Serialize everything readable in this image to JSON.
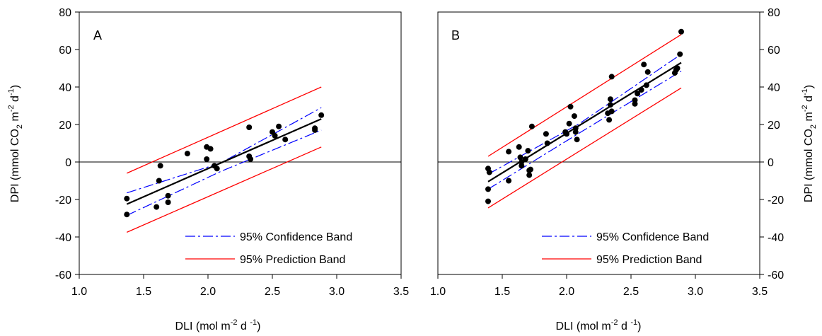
{
  "chart_data": [
    {
      "type": "scatter",
      "panel_label": "A",
      "xlabel": {
        "base": "DLI (mol m",
        "sup1": "-2",
        "mid": " d ",
        "sup2": "-1",
        "end": ")"
      },
      "ylabel": {
        "base": "DPI (mmol CO",
        "sub": "2",
        "mid": " m",
        "sup1": "-2",
        "mid2": " d",
        "sup2": "-1",
        "end": ")"
      },
      "ylabel_side": "left",
      "xlim": [
        1.0,
        3.5
      ],
      "ylim": [
        -60,
        80
      ],
      "xticks": [
        "1.0",
        "1.5",
        "2.0",
        "2.5",
        "3.0",
        "3.5"
      ],
      "yticks": [
        "-60",
        "-40",
        "-20",
        "0",
        "20",
        "40",
        "60",
        "80"
      ],
      "zero_line": 0,
      "legend_position": "bottom-right",
      "legend": [
        {
          "name": "95% Confidence Band",
          "style": "dash-dot",
          "color": "#0000ff"
        },
        {
          "name": "95% Prediction Band",
          "style": "solid",
          "color": "#ff0000"
        }
      ],
      "points": [
        [
          1.37,
          -28
        ],
        [
          1.37,
          -19.5
        ],
        [
          1.6,
          -24
        ],
        [
          1.62,
          -10
        ],
        [
          1.63,
          -2
        ],
        [
          1.69,
          -21.5
        ],
        [
          1.69,
          -18
        ],
        [
          1.84,
          4.5
        ],
        [
          1.99,
          1.5
        ],
        [
          1.99,
          8
        ],
        [
          2.02,
          7
        ],
        [
          2.05,
          -2
        ],
        [
          2.07,
          -3.5
        ],
        [
          2.32,
          18.5
        ],
        [
          2.32,
          3
        ],
        [
          2.33,
          1.5
        ],
        [
          2.5,
          16
        ],
        [
          2.52,
          14
        ],
        [
          2.55,
          19
        ],
        [
          2.6,
          12
        ],
        [
          2.83,
          18
        ],
        [
          2.83,
          17
        ],
        [
          2.88,
          25
        ]
      ],
      "regression": {
        "x": [
          1.37,
          2.88
        ],
        "y": [
          -22.5,
          23
        ]
      },
      "confidence_upper": {
        "x": [
          1.37,
          2.1,
          2.88
        ],
        "y": [
          -16.5,
          -0.5,
          29
        ]
      },
      "confidence_lower": {
        "x": [
          1.37,
          2.1,
          2.88
        ],
        "y": [
          -28.5,
          -5,
          17
        ]
      },
      "prediction_upper": {
        "x": [
          1.37,
          2.88
        ],
        "y": [
          -6,
          40
        ]
      },
      "prediction_lower": {
        "x": [
          1.37,
          2.88
        ],
        "y": [
          -37.5,
          8
        ]
      }
    },
    {
      "type": "scatter",
      "panel_label": "B",
      "xlabel": {
        "base": "DLI (mol m",
        "sup1": "-2",
        "mid": " d ",
        "sup2": "-1",
        "end": ")"
      },
      "ylabel": {
        "base": "DPI (mmol CO",
        "sub": "2",
        "mid": " m",
        "sup1": "-2",
        "mid2": " d",
        "sup2": "-1",
        "end": ")"
      },
      "ylabel_side": "right",
      "xlim": [
        1.0,
        3.5
      ],
      "ylim": [
        -60,
        80
      ],
      "xticks": [
        "1.0",
        "1.5",
        "2.0",
        "2.5",
        "3.0",
        "3.5"
      ],
      "yticks": [
        "-60",
        "-40",
        "-20",
        "0",
        "20",
        "40",
        "60",
        "80"
      ],
      "zero_line": 0,
      "legend_position": "bottom-right",
      "legend": [
        {
          "name": "95% Confidence Band",
          "style": "dash-dot",
          "color": "#0000ff"
        },
        {
          "name": "95% Prediction Band",
          "style": "solid",
          "color": "#ff0000"
        }
      ],
      "points": [
        [
          1.39,
          -3.5
        ],
        [
          1.4,
          -5.5
        ],
        [
          1.39,
          -14.5
        ],
        [
          1.39,
          -21
        ],
        [
          1.55,
          5.5
        ],
        [
          1.55,
          -10
        ],
        [
          1.63,
          8
        ],
        [
          1.64,
          2.5
        ],
        [
          1.65,
          0
        ],
        [
          1.65,
          -2
        ],
        [
          1.68,
          1.5
        ],
        [
          1.7,
          6
        ],
        [
          1.71,
          -4.5
        ],
        [
          1.71,
          -7
        ],
        [
          1.72,
          -4
        ],
        [
          1.73,
          19
        ],
        [
          1.84,
          15
        ],
        [
          1.85,
          10
        ],
        [
          1.99,
          16
        ],
        [
          2.0,
          15
        ],
        [
          2.02,
          20.5
        ],
        [
          2.03,
          29.5
        ],
        [
          2.06,
          24.5
        ],
        [
          2.07,
          18
        ],
        [
          2.07,
          16
        ],
        [
          2.08,
          12
        ],
        [
          2.32,
          26
        ],
        [
          2.33,
          22.5
        ],
        [
          2.34,
          30.5
        ],
        [
          2.34,
          33.5
        ],
        [
          2.35,
          27
        ],
        [
          2.35,
          45.5
        ],
        [
          2.53,
          31
        ],
        [
          2.53,
          33
        ],
        [
          2.55,
          36.5
        ],
        [
          2.58,
          38.5
        ],
        [
          2.6,
          52
        ],
        [
          2.62,
          41
        ],
        [
          2.63,
          48
        ],
        [
          2.84,
          47.5
        ],
        [
          2.85,
          49
        ],
        [
          2.86,
          50
        ],
        [
          2.88,
          57.5
        ],
        [
          2.89,
          69.5
        ]
      ],
      "regression": {
        "x": [
          1.39,
          2.89
        ],
        "y": [
          -10.5,
          53
        ]
      },
      "confidence_upper": {
        "x": [
          1.39,
          2.1,
          2.89
        ],
        "y": [
          -6.5,
          20.5,
          57.5
        ]
      },
      "confidence_lower": {
        "x": [
          1.39,
          2.1,
          2.89
        ],
        "y": [
          -14.5,
          15.5,
          48.5
        ]
      },
      "prediction_upper": {
        "x": [
          1.39,
          2.89
        ],
        "y": [
          3,
          68
        ]
      },
      "prediction_lower": {
        "x": [
          1.39,
          2.89
        ],
        "y": [
          -24.5,
          39.5
        ]
      }
    }
  ]
}
